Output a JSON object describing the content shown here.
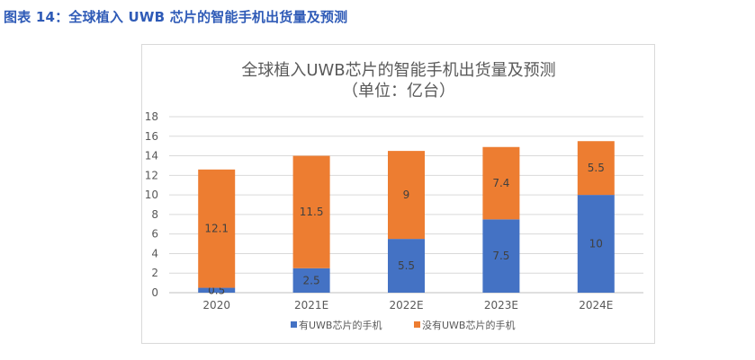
{
  "figure": {
    "caption": "图表 14：全球植入 UWB 芯片的智能手机出货量及预测"
  },
  "chart_data": {
    "type": "bar",
    "stacked": true,
    "title": "全球植入UWB芯片的智能手机出货量及预测",
    "subtitle": "（单位：亿台）",
    "categories": [
      "2020",
      "2021E",
      "2022E",
      "2023E",
      "2024E"
    ],
    "series": [
      {
        "name": "有UWB芯片的手机",
        "values": [
          0.5,
          2.5,
          5.5,
          7.5,
          10
        ],
        "color": "#4472c4"
      },
      {
        "name": "没有UWB芯片的手机",
        "values": [
          12.1,
          11.5,
          9,
          7.4,
          5.5
        ],
        "color": "#ed7d31"
      }
    ],
    "ylim": [
      0,
      18
    ],
    "yticks": [
      0,
      2,
      4,
      6,
      8,
      10,
      12,
      14,
      16,
      18
    ],
    "grid": true,
    "legend_position": "bottom"
  }
}
